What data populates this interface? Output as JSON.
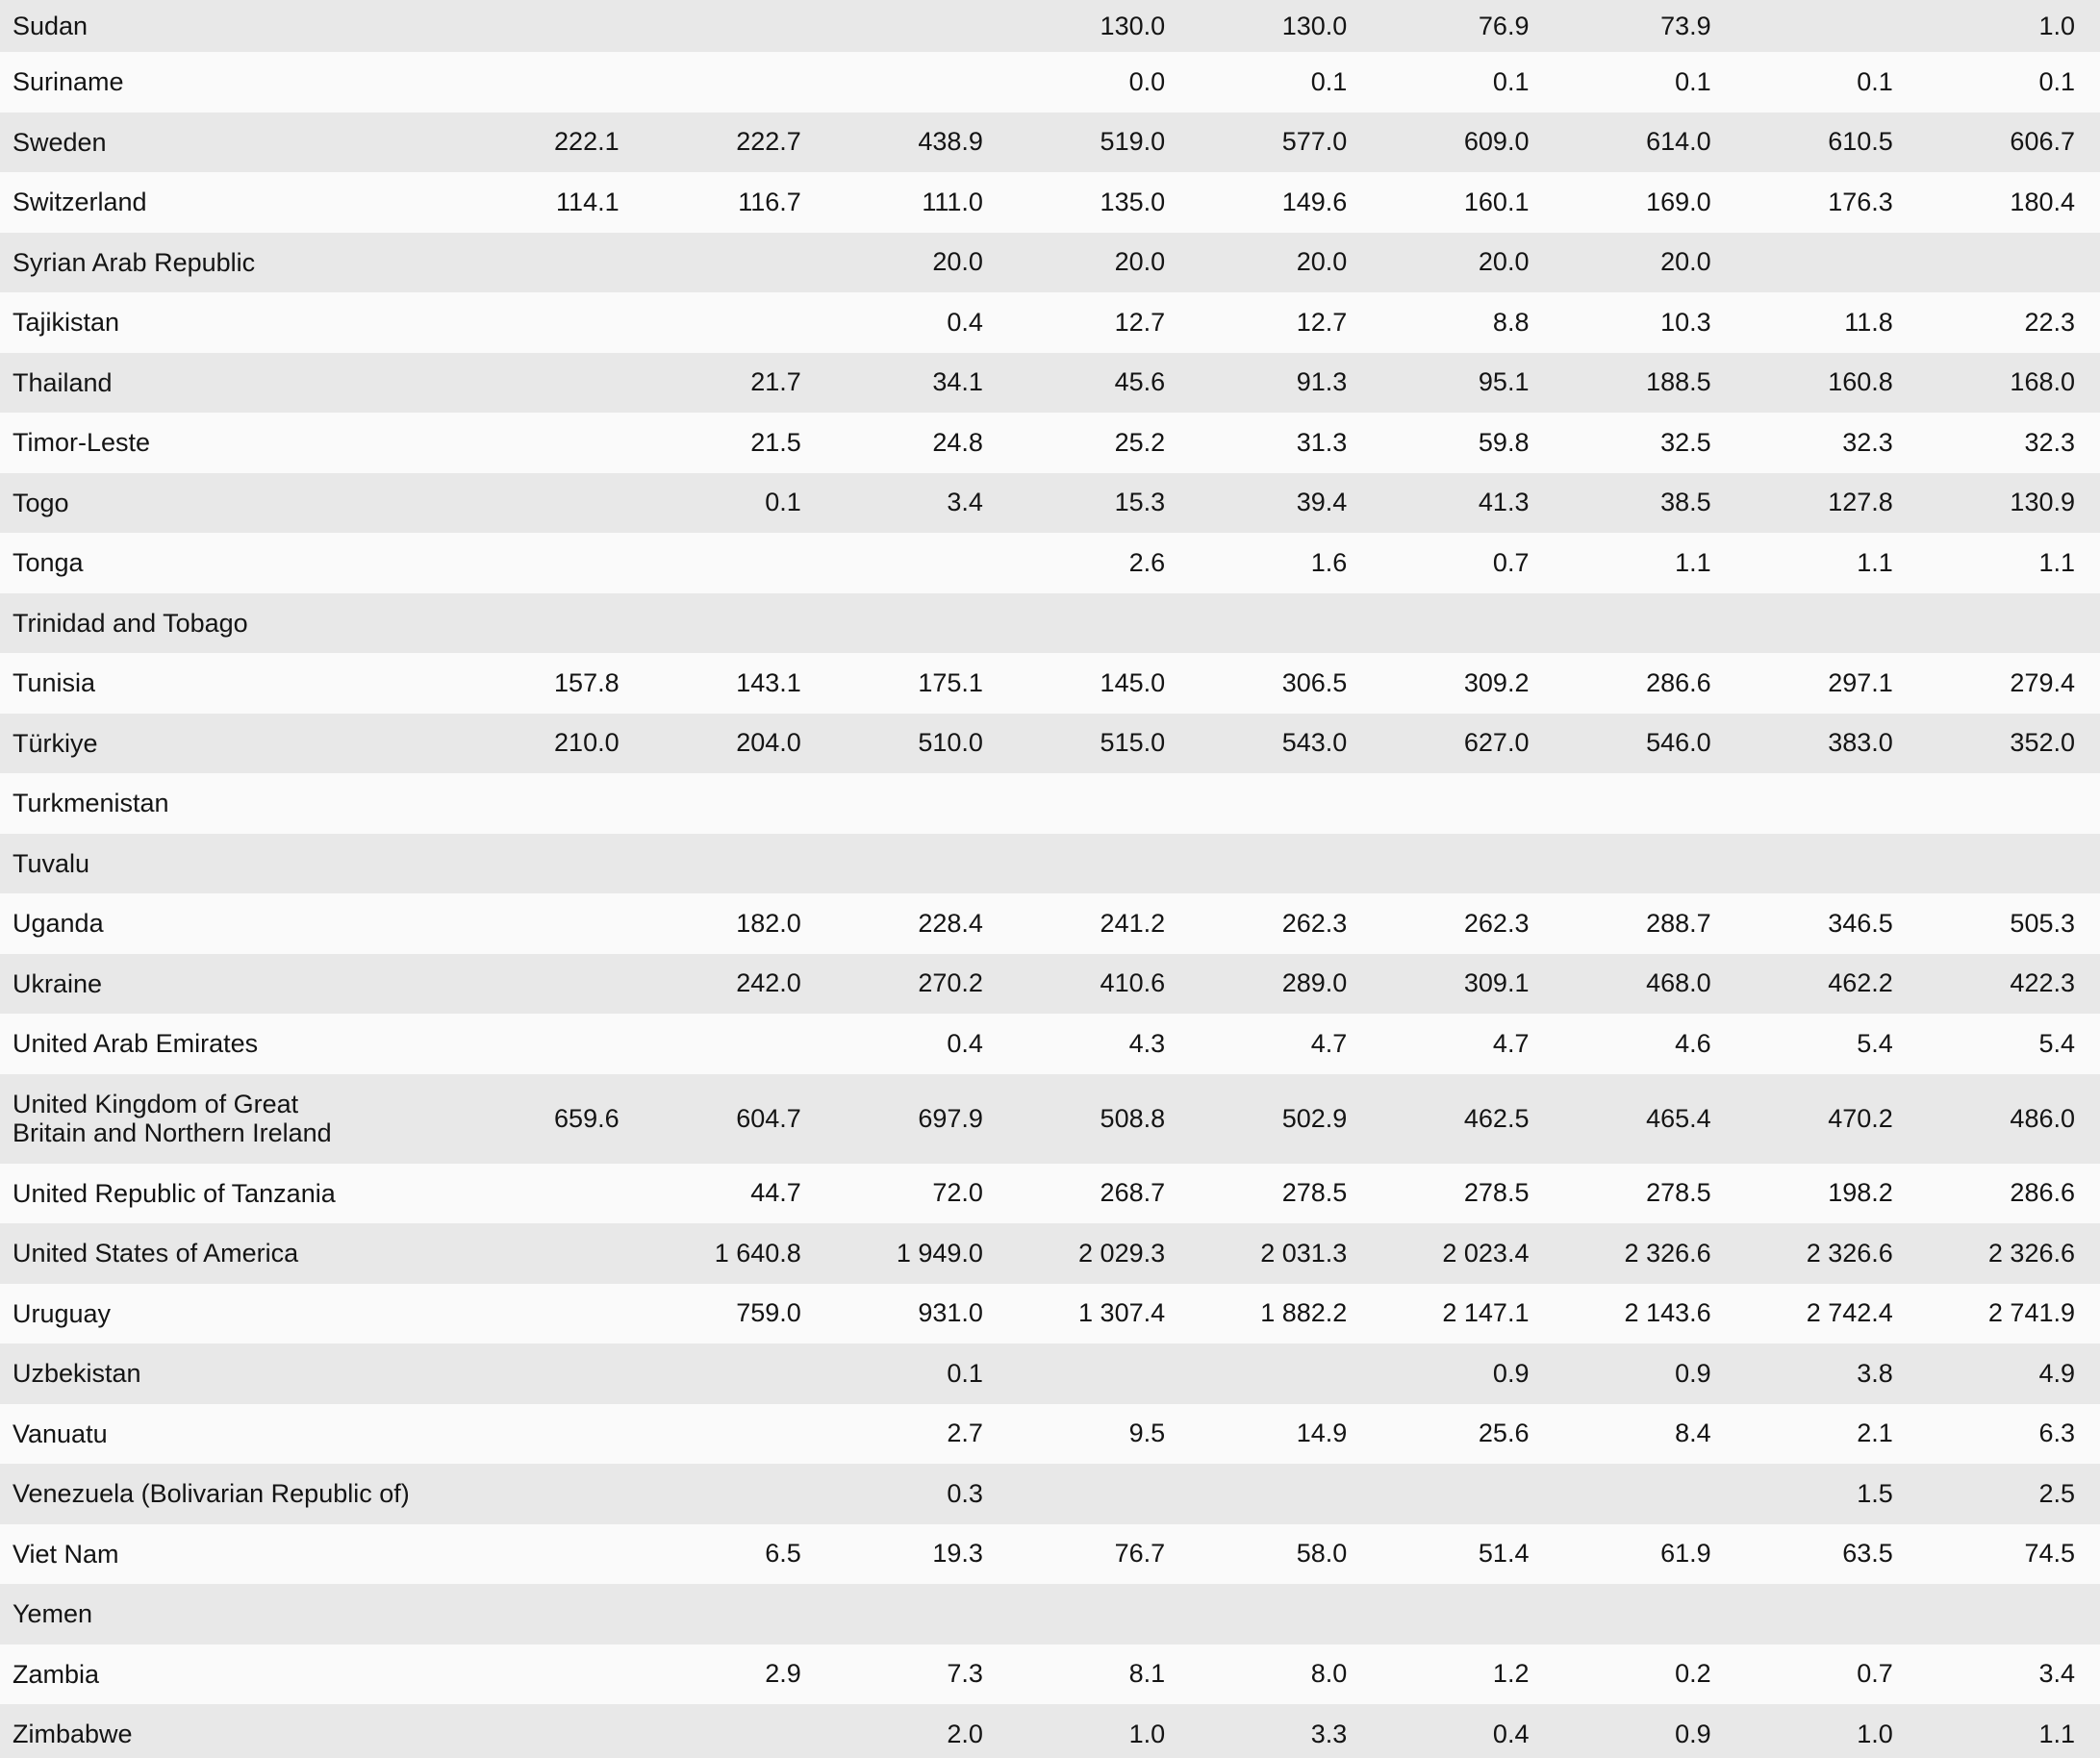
{
  "style": {
    "row_odd_bg": "#e8e8e8",
    "row_even_bg": "#fafafa",
    "text_color": "#141414"
  },
  "table": {
    "description": "country-statistics-table",
    "num_value_columns": 9,
    "rows": [
      {
        "name": "Sudan",
        "values": [
          "",
          "",
          "",
          "130.0",
          "130.0",
          "76.9",
          "73.9",
          "",
          "1.0"
        ]
      },
      {
        "name": "Suriname",
        "values": [
          "",
          "",
          "",
          "0.0",
          "0.1",
          "0.1",
          "0.1",
          "0.1",
          "0.1"
        ]
      },
      {
        "name": "Sweden",
        "values": [
          "222.1",
          "222.7",
          "438.9",
          "519.0",
          "577.0",
          "609.0",
          "614.0",
          "610.5",
          "606.7"
        ]
      },
      {
        "name": "Switzerland",
        "values": [
          "114.1",
          "116.7",
          "111.0",
          "135.0",
          "149.6",
          "160.1",
          "169.0",
          "176.3",
          "180.4"
        ]
      },
      {
        "name": "Syrian Arab Republic",
        "values": [
          "",
          "",
          "20.0",
          "20.0",
          "20.0",
          "20.0",
          "20.0",
          "",
          ""
        ]
      },
      {
        "name": "Tajikistan",
        "values": [
          "",
          "",
          "0.4",
          "12.7",
          "12.7",
          "8.8",
          "10.3",
          "11.8",
          "22.3"
        ]
      },
      {
        "name": "Thailand",
        "values": [
          "",
          "21.7",
          "34.1",
          "45.6",
          "91.3",
          "95.1",
          "188.5",
          "160.8",
          "168.0"
        ]
      },
      {
        "name": "Timor-Leste",
        "values": [
          "",
          "21.5",
          "24.8",
          "25.2",
          "31.3",
          "59.8",
          "32.5",
          "32.3",
          "32.3"
        ]
      },
      {
        "name": "Togo",
        "values": [
          "",
          "0.1",
          "3.4",
          "15.3",
          "39.4",
          "41.3",
          "38.5",
          "127.8",
          "130.9"
        ]
      },
      {
        "name": "Tonga",
        "values": [
          "",
          "",
          "",
          "2.6",
          "1.6",
          "0.7",
          "1.1",
          "1.1",
          "1.1"
        ]
      },
      {
        "name": "Trinidad and Tobago",
        "values": [
          "",
          "",
          "",
          "",
          "",
          "",
          "",
          "",
          ""
        ]
      },
      {
        "name": "Tunisia",
        "values": [
          "157.8",
          "143.1",
          "175.1",
          "145.0",
          "306.5",
          "309.2",
          "286.6",
          "297.1",
          "279.4"
        ]
      },
      {
        "name": "Türkiye",
        "values": [
          "210.0",
          "204.0",
          "510.0",
          "515.0",
          "543.0",
          "627.0",
          "546.0",
          "383.0",
          "352.0"
        ]
      },
      {
        "name": "Turkmenistan",
        "values": [
          "",
          "",
          "",
          "",
          "",
          "",
          "",
          "",
          ""
        ]
      },
      {
        "name": "Tuvalu",
        "values": [
          "",
          "",
          "",
          "",
          "",
          "",
          "",
          "",
          ""
        ]
      },
      {
        "name": "Uganda",
        "values": [
          "",
          "182.0",
          "228.4",
          "241.2",
          "262.3",
          "262.3",
          "288.7",
          "346.5",
          "505.3"
        ]
      },
      {
        "name": "Ukraine",
        "values": [
          "",
          "242.0",
          "270.2",
          "410.6",
          "289.0",
          "309.1",
          "468.0",
          "462.2",
          "422.3"
        ]
      },
      {
        "name": "United Arab Emirates",
        "values": [
          "",
          "",
          "0.4",
          "4.3",
          "4.7",
          "4.7",
          "4.6",
          "5.4",
          "5.4"
        ]
      },
      {
        "name": "United Kingdom of Great\nBritain and Northern Ireland",
        "values": [
          "659.6",
          "604.7",
          "697.9",
          "508.8",
          "502.9",
          "462.5",
          "465.4",
          "470.2",
          "486.0"
        ]
      },
      {
        "name": "United Republic of Tanzania",
        "values": [
          "",
          "44.7",
          "72.0",
          "268.7",
          "278.5",
          "278.5",
          "278.5",
          "198.2",
          "286.6"
        ]
      },
      {
        "name": "United States of America",
        "values": [
          "",
          "1 640.8",
          "1 949.0",
          "2 029.3",
          "2 031.3",
          "2 023.4",
          "2 326.6",
          "2 326.6",
          "2 326.6"
        ]
      },
      {
        "name": "Uruguay",
        "values": [
          "",
          "759.0",
          "931.0",
          "1 307.4",
          "1 882.2",
          "2 147.1",
          "2 143.6",
          "2 742.4",
          "2 741.9"
        ]
      },
      {
        "name": "Uzbekistan",
        "values": [
          "",
          "",
          "0.1",
          "",
          "",
          "0.9",
          "0.9",
          "3.8",
          "4.9"
        ]
      },
      {
        "name": "Vanuatu",
        "values": [
          "",
          "",
          "2.7",
          "9.5",
          "14.9",
          "25.6",
          "8.4",
          "2.1",
          "6.3"
        ]
      },
      {
        "name": "Venezuela (Bolivarian Republic of)",
        "values": [
          "",
          "",
          "0.3",
          "",
          "",
          "",
          "",
          "1.5",
          "2.5"
        ]
      },
      {
        "name": "Viet Nam",
        "values": [
          "",
          "6.5",
          "19.3",
          "76.7",
          "58.0",
          "51.4",
          "61.9",
          "63.5",
          "74.5"
        ]
      },
      {
        "name": "Yemen",
        "values": [
          "",
          "",
          "",
          "",
          "",
          "",
          "",
          "",
          ""
        ]
      },
      {
        "name": "Zambia",
        "values": [
          "",
          "2.9",
          "7.3",
          "8.1",
          "8.0",
          "1.2",
          "0.2",
          "0.7",
          "3.4"
        ]
      },
      {
        "name": "Zimbabwe",
        "values": [
          "",
          "",
          "2.0",
          "1.0",
          "3.3",
          "0.4",
          "0.9",
          "1.0",
          "1.1"
        ]
      }
    ]
  }
}
